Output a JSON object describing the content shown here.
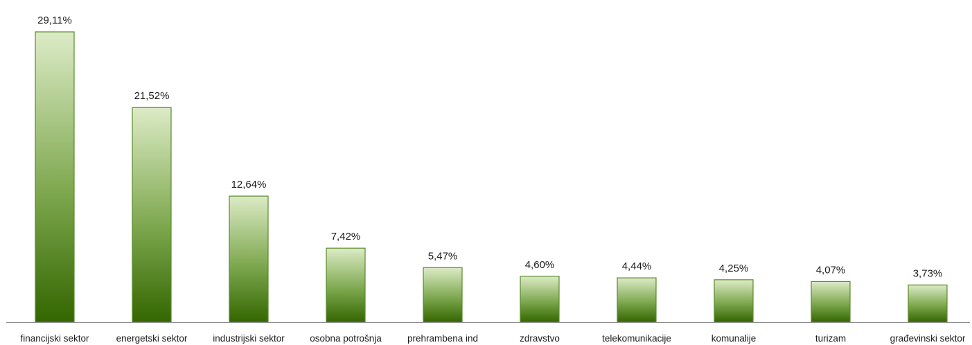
{
  "chart_data": {
    "type": "bar",
    "title": "",
    "xlabel": "",
    "ylabel": "",
    "categories": [
      "financijski sektor",
      "energetski sektor",
      "industrijski sektor",
      "osobna potrošnja",
      "prehrambena ind",
      "zdravstvo",
      "telekomunikacije",
      "komunalije",
      "turizam",
      "građevinski sektor"
    ],
    "values": [
      29.11,
      21.52,
      12.64,
      7.42,
      5.47,
      4.6,
      4.44,
      4.25,
      4.07,
      3.73
    ],
    "data_labels": [
      "29,11%",
      "21,52%",
      "12,64%",
      "7,42%",
      "5,47%",
      "4,60%",
      "4,44%",
      "4,25%",
      "4,07%",
      "3,73%"
    ],
    "ylim": [
      0,
      30
    ],
    "grid": false,
    "legend": "none",
    "colors": {
      "bar_top": "#dcebc6",
      "bar_bottom": "#336600",
      "bar_border": "#5a8a2a",
      "axis": "#8c8c8c"
    }
  }
}
